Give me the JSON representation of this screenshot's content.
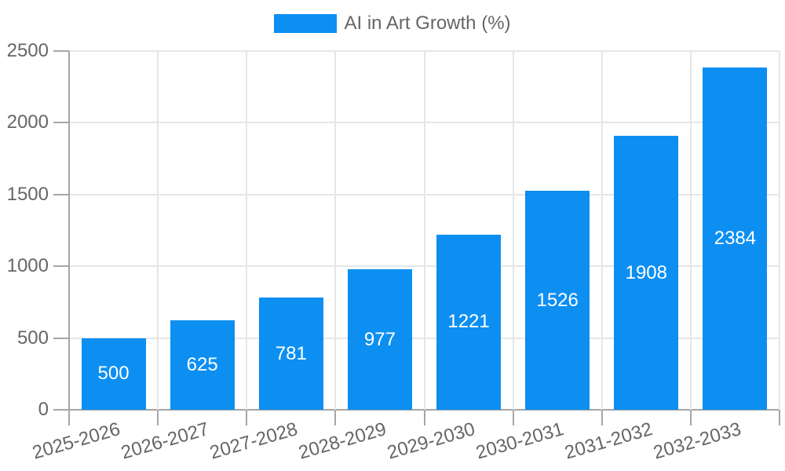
{
  "chart_data": {
    "type": "bar",
    "title": "",
    "legend_label": "AI in Art Growth (%)",
    "legend_position": "top",
    "categories": [
      "2025-2026",
      "2026-2027",
      "2027-2028",
      "2028-2029",
      "2029-2030",
      "2030-2031",
      "2031-2032",
      "2032-2033"
    ],
    "values": [
      500,
      625,
      781,
      977,
      1221,
      1526,
      1908,
      2384
    ],
    "bar_labels": [
      "500",
      "625",
      "781",
      "977",
      "1221",
      "1526",
      "1908",
      "2384"
    ],
    "xlabel": "",
    "ylabel": "",
    "ylim": [
      0,
      2500
    ],
    "yticks": [
      0,
      500,
      1000,
      1500,
      2000,
      2500
    ],
    "grid": true,
    "colors": {
      "bar": "#0D8FF2",
      "tick_text": "#666666",
      "bar_label_text": "#FFFFFF",
      "gridline": "#E6E6E6",
      "axis_line": "#A6A6A6",
      "background": "#FFFFFF"
    }
  }
}
